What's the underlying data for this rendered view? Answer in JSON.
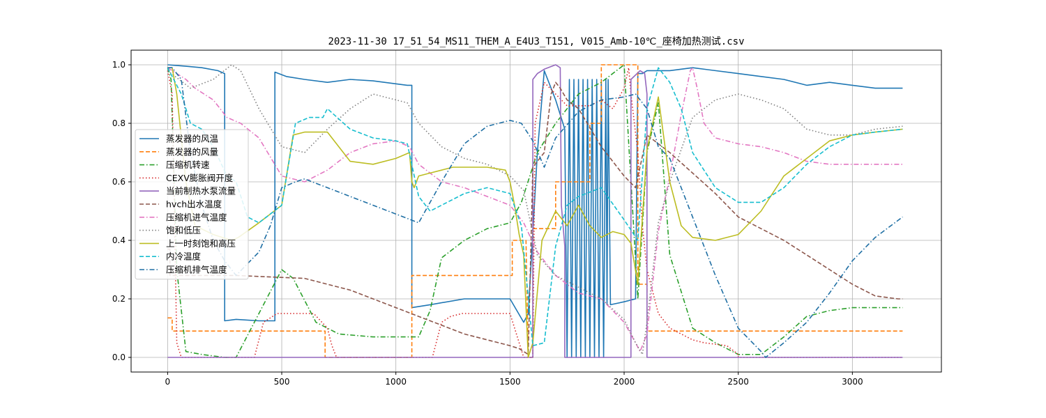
{
  "chart_data": {
    "type": "line",
    "title": "2023-11-30 17_51_54_MS11_THEM_A_E4U3_T151, V015_Amb-10℃_座椅加热测试.csv",
    "xlabel": "",
    "ylabel": "",
    "xlim": [
      -160,
      3390
    ],
    "ylim": [
      -0.05,
      1.05
    ],
    "xticks": [
      0,
      500,
      1000,
      1500,
      2000,
      2500,
      3000
    ],
    "yticks": [
      0.0,
      0.2,
      0.4,
      0.6,
      0.8,
      1.0
    ],
    "xtick_labels": [
      "0",
      "500",
      "1000",
      "1500",
      "2000",
      "2500",
      "3000"
    ],
    "ytick_labels": [
      "0.0",
      "0.2",
      "0.4",
      "0.6",
      "0.8",
      "1.0"
    ],
    "grid": true,
    "legend_position": "center-left",
    "series": [
      {
        "name": "蒸发器的风温",
        "color": "#1f77b4",
        "dash": "solid",
        "x": [
          0,
          80,
          150,
          220,
          250,
          250,
          300,
          400,
          470,
          470,
          520,
          600,
          700,
          800,
          900,
          1000,
          1050,
          1070,
          1070,
          1150,
          1300,
          1450,
          1500,
          1560,
          1580,
          1620,
          1650,
          1700,
          1740,
          1750,
          1760,
          1770,
          1780,
          1790,
          1800,
          1810,
          1820,
          1830,
          1840,
          1850,
          1860,
          1870,
          1880,
          1890,
          1900,
          1910,
          1920,
          1925,
          1930,
          1940,
          2000,
          2050,
          2060,
          2080,
          2100,
          2200,
          2300,
          2500,
          2600,
          2700,
          2800,
          2900,
          3000,
          3100,
          3220
        ],
        "y": [
          1.0,
          0.995,
          0.99,
          0.98,
          0.97,
          0.125,
          0.13,
          0.125,
          0.125,
          0.975,
          0.96,
          0.95,
          0.94,
          0.95,
          0.945,
          0.935,
          0.93,
          0.93,
          0.17,
          0.18,
          0.2,
          0.2,
          0.2,
          0.12,
          0.15,
          0.7,
          0.98,
          0.88,
          0.78,
          0.0,
          0.95,
          0.0,
          0.95,
          0.0,
          0.95,
          0.0,
          0.95,
          0.0,
          0.95,
          0.0,
          0.95,
          0.0,
          0.95,
          0.0,
          0.95,
          0.0,
          0.95,
          0.18,
          0.95,
          0.18,
          0.19,
          0.2,
          0.97,
          0.97,
          0.98,
          0.98,
          0.99,
          0.97,
          0.96,
          0.95,
          0.93,
          0.94,
          0.93,
          0.92,
          0.92
        ]
      },
      {
        "name": "蒸发器的风量",
        "color": "#ff7f0e",
        "dash": "dashed",
        "x": [
          0,
          20,
          20,
          400,
          690,
          690,
          1070,
          1070,
          1500,
          1510,
          1510,
          1570,
          1580,
          1600,
          1600,
          1700,
          1700,
          1850,
          1850,
          1900,
          1900,
          2000,
          2050,
          2060,
          2060,
          2100,
          2100,
          3220
        ],
        "y": [
          0.135,
          0.135,
          0.09,
          0.09,
          0.09,
          0.0,
          0.0,
          0.28,
          0.28,
          0.28,
          0.4,
          0.4,
          0.0,
          0.0,
          0.44,
          0.44,
          0.6,
          0.6,
          0.8,
          0.8,
          1.0,
          1.0,
          1.0,
          1.0,
          0.25,
          0.25,
          0.09,
          0.09
        ]
      },
      {
        "name": "压缩机转速",
        "color": "#2ca02c",
        "dash": "dashdot",
        "x": [
          0,
          15,
          40,
          80,
          150,
          250,
          300,
          400,
          500,
          550,
          650,
          750,
          900,
          1100,
          1150,
          1200,
          1300,
          1400,
          1500,
          1550,
          1620,
          1700,
          1800,
          1900,
          2000,
          2060,
          2100,
          2150,
          2200,
          2300,
          2400,
          2500,
          2600,
          2700,
          2800,
          2900,
          3000,
          3100,
          3220
        ],
        "y": [
          0.99,
          0.95,
          0.3,
          0.02,
          0.01,
          0.0,
          0.0,
          0.15,
          0.3,
          0.27,
          0.12,
          0.08,
          0.07,
          0.07,
          0.16,
          0.34,
          0.4,
          0.44,
          0.46,
          0.53,
          0.7,
          0.8,
          0.9,
          0.94,
          1.0,
          0.2,
          0.7,
          0.87,
          0.35,
          0.1,
          0.05,
          0.01,
          0.01,
          0.07,
          0.14,
          0.16,
          0.17,
          0.17,
          0.17
        ]
      },
      {
        "name": "CEXV膨胀阀开度",
        "color": "#d62728",
        "dash": "dotted",
        "x": [
          0,
          20,
          40,
          60,
          60,
          380,
          400,
          420,
          460,
          480,
          500,
          640,
          700,
          720,
          740,
          1160,
          1180,
          1200,
          1240,
          1290,
          1350,
          1400,
          1450,
          1500,
          1560,
          1600,
          1610,
          1650,
          1700,
          1750,
          1800,
          1850,
          1900,
          1950,
          2000,
          2020,
          2030,
          2060,
          2080,
          2100,
          2150,
          2200,
          2250,
          2300,
          2350,
          2450,
          2500,
          2500,
          3220
        ],
        "y": [
          0.98,
          0.9,
          0.05,
          0.0,
          0.0,
          0.0,
          0.06,
          0.12,
          0.14,
          0.15,
          0.15,
          0.15,
          0.1,
          0.04,
          0.0,
          0.0,
          0.06,
          0.12,
          0.14,
          0.15,
          0.15,
          0.15,
          0.15,
          0.15,
          0.0,
          0.0,
          0.8,
          0.94,
          0.9,
          0.86,
          0.86,
          0.86,
          0.88,
          0.85,
          0.92,
          0.99,
          0.9,
          0.7,
          0.45,
          0.3,
          0.15,
          0.1,
          0.08,
          0.06,
          0.05,
          0.04,
          0.01,
          0.0,
          0.0
        ]
      },
      {
        "name": "当前制热水泵流量",
        "color": "#9467bd",
        "dash": "solid",
        "x": [
          0,
          1600,
          1600,
          1620,
          1650,
          1700,
          1720,
          1725,
          1740,
          1740,
          2030,
          2030,
          2070,
          2090,
          2100,
          2100,
          3220
        ],
        "y": [
          0.0,
          0.0,
          0.95,
          0.97,
          0.985,
          1.0,
          0.99,
          0.52,
          0.38,
          0.0,
          0.0,
          0.95,
          0.98,
          0.97,
          0.9,
          0.0,
          0.0
        ]
      },
      {
        "name": "hvch出水温度",
        "color": "#8c564b",
        "dash": "dashed",
        "x": [
          0,
          10,
          10,
          300,
          300,
          600,
          700,
          800,
          900,
          1000,
          1100,
          1200,
          1300,
          1400,
          1500,
          1540,
          1560,
          1580,
          1600,
          1650,
          1680,
          1700,
          1720,
          1750,
          1800,
          1900,
          2000,
          2050,
          2100,
          2200,
          2300,
          2400,
          2500,
          2600,
          2700,
          2800,
          2900,
          3000,
          3100,
          3200,
          3220
        ],
        "y": [
          0.37,
          0.37,
          0.28,
          0.28,
          0.28,
          0.27,
          0.25,
          0.23,
          0.2,
          0.17,
          0.14,
          0.11,
          0.08,
          0.06,
          0.04,
          0.03,
          0.02,
          0.01,
          0.65,
          0.7,
          0.9,
          0.94,
          0.92,
          0.88,
          0.85,
          0.72,
          0.62,
          0.58,
          0.76,
          0.7,
          0.63,
          0.56,
          0.48,
          0.44,
          0.4,
          0.35,
          0.3,
          0.25,
          0.21,
          0.2,
          0.2
        ]
      },
      {
        "name": "压缩机进气温度",
        "color": "#e377c2",
        "dash": "dashdot",
        "x": [
          0,
          40,
          80,
          120,
          160,
          200,
          260,
          320,
          400,
          500,
          600,
          700,
          800,
          900,
          1000,
          1060,
          1100,
          1200,
          1300,
          1400,
          1500,
          1560,
          1620,
          1700,
          1800,
          1900,
          2000,
          2050,
          2070,
          2100,
          2150,
          2200,
          2250,
          2290,
          2300,
          2320,
          2350,
          2400,
          2500,
          2600,
          2700,
          2800,
          2900,
          3000,
          3100,
          3220
        ],
        "y": [
          0.99,
          0.97,
          0.95,
          0.92,
          0.9,
          0.88,
          0.82,
          0.8,
          0.75,
          0.62,
          0.6,
          0.64,
          0.7,
          0.73,
          0.74,
          0.72,
          0.66,
          0.6,
          0.58,
          0.55,
          0.52,
          0.46,
          0.36,
          0.28,
          0.22,
          0.2,
          0.12,
          0.05,
          0.02,
          0.08,
          0.43,
          0.62,
          0.83,
          0.98,
          0.99,
          0.92,
          0.8,
          0.75,
          0.73,
          0.72,
          0.7,
          0.67,
          0.66,
          0.66,
          0.66,
          0.66
        ]
      },
      {
        "name": "饱和低压",
        "color": "#7f7f7f",
        "dash": "dotted",
        "x": [
          0,
          100,
          200,
          280,
          320,
          400,
          500,
          600,
          700,
          800,
          900,
          1000,
          1050,
          1100,
          1200,
          1300,
          1400,
          1500,
          1560,
          1620,
          1700,
          1800,
          1900,
          2000,
          2050,
          2080,
          2100,
          2150,
          2200,
          2300,
          2400,
          2500,
          2600,
          2700,
          2800,
          2900,
          3000,
          3100,
          3220
        ],
        "y": [
          0.98,
          0.92,
          0.95,
          1.0,
          0.98,
          0.85,
          0.72,
          0.7,
          0.78,
          0.85,
          0.9,
          0.88,
          0.87,
          0.8,
          0.72,
          0.68,
          0.66,
          0.62,
          0.57,
          0.35,
          0.28,
          0.24,
          0.2,
          0.13,
          0.05,
          0.01,
          0.12,
          0.46,
          0.6,
          0.82,
          0.88,
          0.9,
          0.88,
          0.85,
          0.78,
          0.76,
          0.76,
          0.78,
          0.79
        ]
      },
      {
        "name": "上一时刻饱和高压",
        "color": "#bcbd22",
        "dash": "solid",
        "x": [
          0,
          20,
          40,
          80,
          120,
          200,
          280,
          310,
          400,
          500,
          550,
          600,
          640,
          700,
          800,
          900,
          1000,
          1060,
          1070,
          1080,
          1100,
          1150,
          1200,
          1250,
          1300,
          1400,
          1480,
          1500,
          1520,
          1540,
          1560,
          1580,
          1600,
          1640,
          1700,
          1750,
          1800,
          1850,
          1900,
          1950,
          2000,
          2030,
          2060,
          2100,
          2150,
          2200,
          2250,
          2300,
          2400,
          2500,
          2600,
          2700,
          2800,
          2900,
          3000,
          3100,
          3220
        ],
        "y": [
          0.99,
          0.99,
          0.9,
          0.6,
          0.45,
          0.42,
          0.4,
          0.41,
          0.46,
          0.52,
          0.76,
          0.77,
          0.77,
          0.77,
          0.67,
          0.66,
          0.68,
          0.7,
          0.6,
          0.58,
          0.62,
          0.63,
          0.64,
          0.65,
          0.65,
          0.65,
          0.64,
          0.6,
          0.52,
          0.42,
          0.35,
          0.0,
          0.05,
          0.4,
          0.5,
          0.45,
          0.52,
          0.45,
          0.41,
          0.43,
          0.42,
          0.39,
          0.25,
          0.71,
          0.89,
          0.6,
          0.45,
          0.41,
          0.4,
          0.42,
          0.5,
          0.62,
          0.68,
          0.74,
          0.76,
          0.77,
          0.78
        ]
      },
      {
        "name": "内冷温度",
        "color": "#17becf",
        "dash": "dashed",
        "x": [
          0,
          60,
          100,
          150,
          200,
          260,
          300,
          350,
          400,
          500,
          560,
          620,
          680,
          700,
          800,
          900,
          1000,
          1050,
          1100,
          1150,
          1200,
          1300,
          1400,
          1500,
          1550,
          1600,
          1650,
          1700,
          1750,
          1800,
          1900,
          2000,
          2060,
          2100,
          2150,
          2200,
          2250,
          2300,
          2400,
          2500,
          2600,
          2700,
          2800,
          2900,
          3000,
          3100,
          3220
        ],
        "y": [
          0.99,
          0.9,
          0.8,
          0.78,
          0.72,
          0.62,
          0.6,
          0.48,
          0.46,
          0.52,
          0.8,
          0.82,
          0.82,
          0.85,
          0.78,
          0.75,
          0.74,
          0.73,
          0.55,
          0.5,
          0.52,
          0.56,
          0.58,
          0.56,
          0.45,
          0.04,
          0.05,
          0.38,
          0.52,
          0.55,
          0.58,
          0.47,
          0.4,
          0.85,
          0.99,
          0.94,
          0.85,
          0.7,
          0.58,
          0.53,
          0.53,
          0.58,
          0.66,
          0.72,
          0.76,
          0.77,
          0.78
        ]
      },
      {
        "name": "压缩机排气温度",
        "color": "#1f6fa4",
        "dash": "dashdot",
        "x": [
          0,
          20,
          60,
          100,
          150,
          200,
          250,
          300,
          350,
          400,
          450,
          500,
          560,
          600,
          700,
          800,
          900,
          1000,
          1100,
          1200,
          1300,
          1400,
          1500,
          1550,
          1600,
          1650,
          1700,
          1800,
          1900,
          2000,
          2050,
          2100,
          2150,
          2200,
          2300,
          2400,
          2500,
          2600,
          2620,
          2700,
          2800,
          2900,
          3000,
          3100,
          3220
        ],
        "y": [
          0.99,
          0.99,
          0.95,
          0.7,
          0.52,
          0.4,
          0.33,
          0.28,
          0.32,
          0.36,
          0.45,
          0.58,
          0.6,
          0.61,
          0.58,
          0.55,
          0.52,
          0.49,
          0.46,
          0.6,
          0.73,
          0.79,
          0.81,
          0.8,
          0.74,
          0.65,
          0.75,
          0.84,
          0.88,
          0.89,
          0.9,
          0.85,
          0.72,
          0.68,
          0.48,
          0.28,
          0.1,
          0.02,
          0.0,
          0.05,
          0.12,
          0.22,
          0.33,
          0.41,
          0.48
        ]
      }
    ]
  }
}
